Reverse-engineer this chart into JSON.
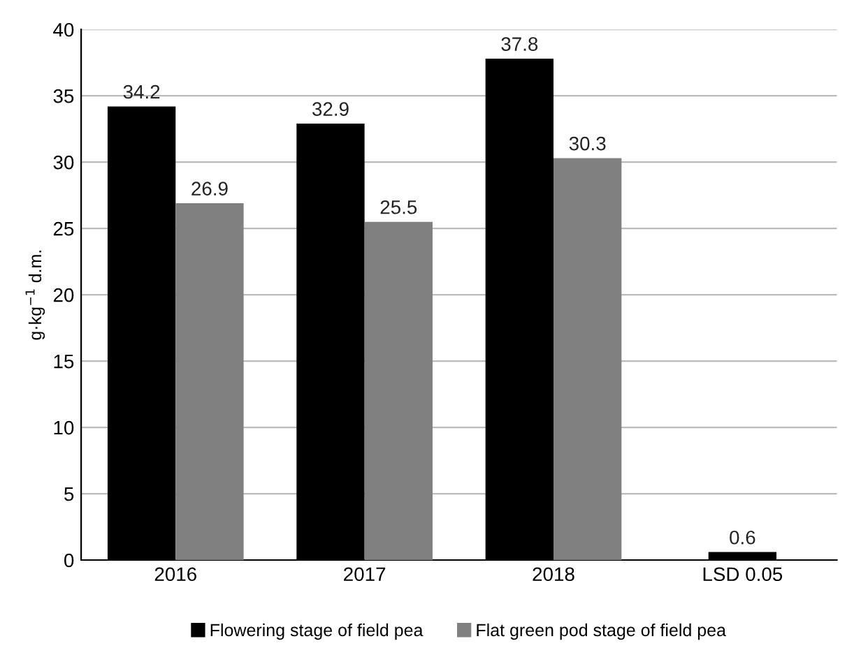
{
  "chart_data": {
    "type": "bar",
    "ylabel": "g·kg$^{−1}$ d.m.",
    "categories": [
      "2016",
      "2017",
      "2018",
      "LSD 0.05"
    ],
    "series": [
      {
        "name": "Flowering stage of field pea",
        "color": "#000000",
        "values": [
          34.2,
          32.9,
          37.8,
          null
        ]
      },
      {
        "name": "Flat green pod stage of field pea",
        "color": "#808080",
        "values": [
          26.9,
          25.5,
          30.3,
          null
        ]
      },
      {
        "color": "#000000",
        "values": [
          null,
          null,
          null,
          0.6
        ]
      }
    ],
    "ylim": [
      0,
      40
    ],
    "yticks": [
      0,
      5,
      10,
      15,
      20,
      25,
      30,
      35,
      40
    ],
    "grid": "y",
    "legend": "bottom",
    "data_labels": true
  }
}
